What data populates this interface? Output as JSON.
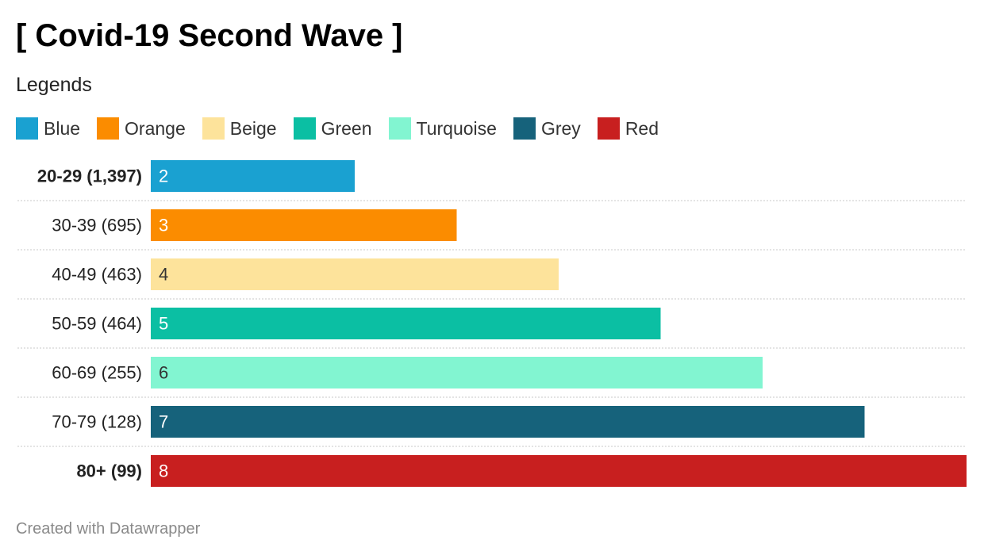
{
  "title": "[ Covid-19 Second Wave ]",
  "legend_heading": "Legends",
  "legend": [
    {
      "label": "Blue",
      "color": "#1aa1d1"
    },
    {
      "label": "Orange",
      "color": "#fb8c00"
    },
    {
      "label": "Beige",
      "color": "#fde39b"
    },
    {
      "label": "Green",
      "color": "#0bbfa3"
    },
    {
      "label": "Turquoise",
      "color": "#82f5d1"
    },
    {
      "label": "Grey",
      "color": "#16627b"
    },
    {
      "label": "Red",
      "color": "#c81f1f"
    }
  ],
  "chart_data": {
    "type": "bar",
    "orientation": "horizontal",
    "categories": [
      "20-29 (1,397)",
      "30-39 (695)",
      "40-49 (463)",
      "50-59 (464)",
      "60-69 (255)",
      "70-79 (128)",
      "80+ (99)"
    ],
    "bold_categories": [
      true,
      false,
      false,
      false,
      false,
      false,
      true
    ],
    "values": [
      2,
      3,
      4,
      5,
      6,
      7,
      8
    ],
    "colors": [
      "#1aa1d1",
      "#fb8c00",
      "#fde39b",
      "#0bbfa3",
      "#82f5d1",
      "#16627b",
      "#c81f1f"
    ],
    "label_colors": [
      "#ffffff",
      "#ffffff",
      "#333333",
      "#ffffff",
      "#333333",
      "#ffffff",
      "#ffffff"
    ],
    "xlim": [
      0,
      8
    ],
    "grid": false
  },
  "footer": "Created with Datawrapper"
}
